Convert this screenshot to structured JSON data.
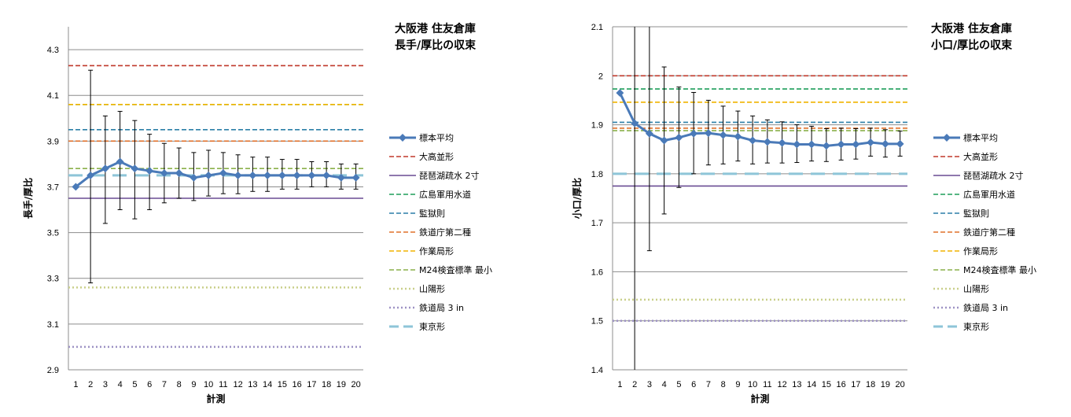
{
  "chart_data": [
    {
      "type": "line",
      "title": [
        "大阪港 住友倉庫",
        "長手/厚比の収束"
      ],
      "xlabel": "計測",
      "ylabel": "長手/厚比",
      "ylim": [
        2.9,
        4.4
      ],
      "yticks": [
        "2.9",
        "3.1",
        "3.3",
        "3.5",
        "3.7",
        "3.9",
        "4.1",
        "4.3"
      ],
      "x": [
        1,
        2,
        3,
        4,
        5,
        6,
        7,
        8,
        9,
        10,
        11,
        12,
        13,
        14,
        15,
        16,
        17,
        18,
        19,
        20
      ],
      "grid": true,
      "legend_position": "right",
      "series": [
        {
          "name": "標本平均",
          "color": "#4a7ab8",
          "values": [
            3.7,
            3.75,
            3.78,
            3.81,
            3.78,
            3.77,
            3.76,
            3.76,
            3.74,
            3.75,
            3.76,
            3.75,
            3.75,
            3.75,
            3.75,
            3.75,
            3.75,
            3.75,
            3.74,
            3.74
          ],
          "error_low": [
            3.7,
            3.28,
            3.54,
            3.6,
            3.56,
            3.6,
            3.63,
            3.65,
            3.64,
            3.66,
            3.67,
            3.67,
            3.68,
            3.68,
            3.69,
            3.69,
            3.7,
            3.7,
            3.69,
            3.69
          ],
          "error_high": [
            3.7,
            4.21,
            4.01,
            4.03,
            3.99,
            3.93,
            3.89,
            3.87,
            3.85,
            3.86,
            3.85,
            3.84,
            3.83,
            3.83,
            3.82,
            3.82,
            3.81,
            3.81,
            3.8,
            3.8
          ]
        }
      ],
      "reference_lines": [
        {
          "name": "大高並形",
          "value": 4.23,
          "color": "#c0392b",
          "style": "dashed"
        },
        {
          "name": "琵琶湖疏水 2寸",
          "value": 3.65,
          "color": "#6a4c93",
          "style": "solid"
        },
        {
          "name": "広島軍用水道",
          "value": 4.06,
          "color": "#1e9e5a",
          "style": "dashed"
        },
        {
          "name": "監獄則",
          "value": 3.95,
          "color": "#2c7fa8",
          "style": "dashed"
        },
        {
          "name": "鉄道庁第二種",
          "value": 3.9,
          "color": "#e0702a",
          "style": "dashed"
        },
        {
          "name": "作業局形",
          "value": 4.06,
          "color": "#f0b400",
          "style": "dashed"
        },
        {
          "name": "M24検査標準 最小",
          "value": 3.78,
          "color": "#8ab04a",
          "style": "dashed"
        },
        {
          "name": "山陽形",
          "value": 3.26,
          "color": "#c9cf8a",
          "style": "dotted"
        },
        {
          "name": "鉄道局 3 in",
          "value": 3.0,
          "color": "#9d92c4",
          "style": "dotted"
        },
        {
          "name": "東京形",
          "value": 3.75,
          "color": "#8ec5d8",
          "style": "longdash"
        }
      ]
    },
    {
      "type": "line",
      "title": [
        "大阪港 住友倉庫",
        "小口/厚比の収束"
      ],
      "xlabel": "計測",
      "ylabel": "小口/厚比",
      "ylim": [
        1.4,
        2.1
      ],
      "yticks": [
        "1.4",
        "1.5",
        "1.6",
        "1.7",
        "1.8",
        "1.9",
        "2",
        "2.1"
      ],
      "x": [
        1,
        2,
        3,
        4,
        5,
        6,
        7,
        8,
        9,
        10,
        11,
        12,
        13,
        14,
        15,
        16,
        17,
        18,
        19,
        20
      ],
      "grid": true,
      "legend_position": "right",
      "series": [
        {
          "name": "標本平均",
          "color": "#4a7ab8",
          "values": [
            1.965,
            1.903,
            1.882,
            1.868,
            1.874,
            1.882,
            1.883,
            1.879,
            1.876,
            1.868,
            1.865,
            1.863,
            1.86,
            1.86,
            1.857,
            1.86,
            1.86,
            1.864,
            1.861,
            1.861
          ],
          "error_low": [
            1.965,
            1.4,
            1.643,
            1.718,
            1.772,
            1.8,
            1.818,
            1.82,
            1.826,
            1.82,
            1.822,
            1.822,
            1.823,
            1.826,
            1.825,
            1.828,
            1.83,
            1.836,
            1.834,
            1.836
          ],
          "error_high": [
            1.965,
            2.1,
            2.1,
            2.018,
            1.977,
            1.966,
            1.95,
            1.938,
            1.928,
            1.918,
            1.91,
            1.906,
            1.9,
            1.897,
            1.892,
            1.893,
            1.892,
            1.893,
            1.89,
            1.887
          ]
        }
      ],
      "reference_lines": [
        {
          "name": "大高並形",
          "value": 2.0,
          "color": "#c0392b",
          "style": "dashed"
        },
        {
          "name": "琵琶湖疏水 2寸",
          "value": 1.775,
          "color": "#6a4c93",
          "style": "solid"
        },
        {
          "name": "広島軍用水道",
          "value": 1.973,
          "color": "#1e9e5a",
          "style": "dashed"
        },
        {
          "name": "監獄則",
          "value": 1.905,
          "color": "#2c7fa8",
          "style": "dashed"
        },
        {
          "name": "鉄道庁第二種",
          "value": 1.893,
          "color": "#e0702a",
          "style": "dashed"
        },
        {
          "name": "作業局形",
          "value": 1.946,
          "color": "#f0b400",
          "style": "dashed"
        },
        {
          "name": "M24検査標準 最小",
          "value": 1.888,
          "color": "#8ab04a",
          "style": "dashed"
        },
        {
          "name": "山陽形",
          "value": 1.543,
          "color": "#c9cf8a",
          "style": "dotted"
        },
        {
          "name": "鉄道局 3 in",
          "value": 1.5,
          "color": "#9d92c4",
          "style": "dotted"
        },
        {
          "name": "東京形",
          "value": 1.8,
          "color": "#8ec5d8",
          "style": "longdash"
        }
      ]
    }
  ]
}
